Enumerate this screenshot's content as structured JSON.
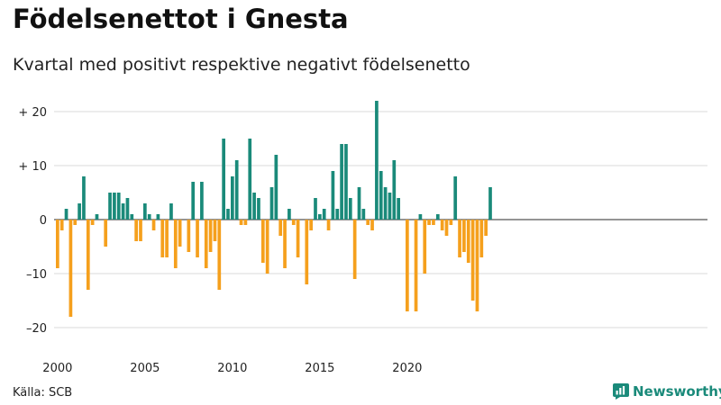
{
  "header": {
    "title": "Födelsenettot i Gnesta",
    "subtitle": "Kvartal med positivt respektive negativt födelsenetto"
  },
  "footer": {
    "source": "Källa: SCB",
    "brand": "Newsworthy"
  },
  "colors": {
    "positive": "#1a8a7a",
    "negative": "#f5a01d",
    "grid": "#d9d9d9",
    "brand": "#1a8a7a"
  },
  "chart_data": {
    "type": "bar",
    "x_start": "2000 Q1",
    "x_tick_labels": [
      "2000",
      "2005",
      "2010",
      "2015",
      "2020"
    ],
    "y_tick_labels": [
      "+ 20",
      "+ 10",
      "0",
      "–10",
      "–20"
    ],
    "y_ticks": [
      20,
      10,
      0,
      -10,
      -20
    ],
    "ylim": [
      -22,
      22
    ],
    "grid": true,
    "values": [
      -9,
      -2,
      2,
      -18,
      -1,
      3,
      8,
      -13,
      -1,
      1,
      0,
      -5,
      5,
      5,
      5,
      3,
      4,
      1,
      -4,
      -4,
      3,
      1,
      -2,
      1,
      -7,
      -7,
      3,
      -9,
      -5,
      0,
      -6,
      7,
      -7,
      7,
      -9,
      -6,
      -4,
      -13,
      15,
      2,
      8,
      11,
      -1,
      -1,
      15,
      5,
      4,
      -8,
      -10,
      6,
      12,
      -3,
      -9,
      2,
      -1,
      -7,
      0,
      -12,
      -2,
      4,
      1,
      2,
      -2,
      9,
      2,
      14,
      14,
      4,
      -11,
      6,
      2,
      -1,
      -2,
      22,
      9,
      6,
      5,
      11,
      4,
      0,
      -17,
      0,
      -17,
      1,
      -10,
      -1,
      -1,
      1,
      -2,
      -3,
      -1,
      8,
      -7,
      -6,
      -8,
      -15,
      -17,
      -7,
      -3,
      6
    ]
  }
}
